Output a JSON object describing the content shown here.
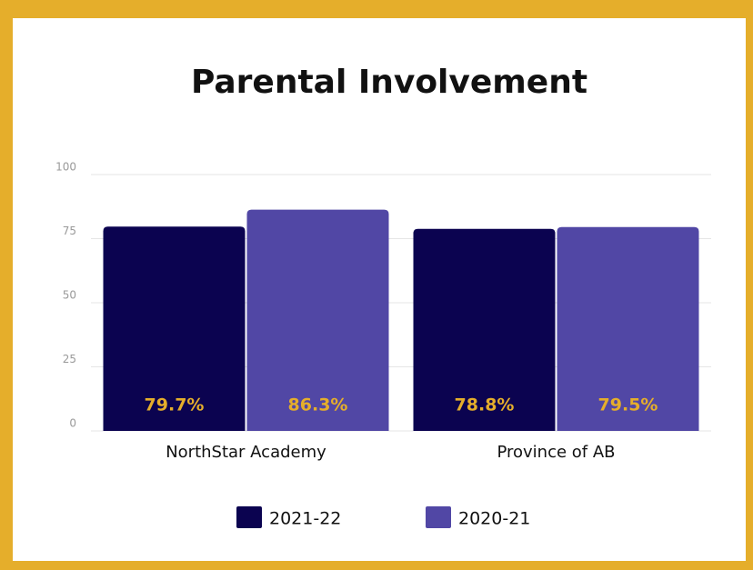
{
  "chart_data": {
    "type": "bar",
    "title": "Parental Involvement",
    "categories": [
      "NorthStar Academy",
      "Province of AB"
    ],
    "series": [
      {
        "name": "2021-22",
        "color": "#0b0350",
        "values": [
          79.7,
          78.8
        ],
        "value_labels": [
          "79.7%",
          "78.8%"
        ]
      },
      {
        "name": "2020-21",
        "color": "#5147a5",
        "values": [
          86.3,
          79.5
        ],
        "value_labels": [
          "86.3%",
          "79.5%"
        ]
      }
    ],
    "ylim": [
      0,
      100
    ],
    "yticks": [
      0,
      25,
      50,
      75,
      100
    ],
    "grid": true,
    "legend": "bottom",
    "value_label_color": "#e5ae2b"
  }
}
